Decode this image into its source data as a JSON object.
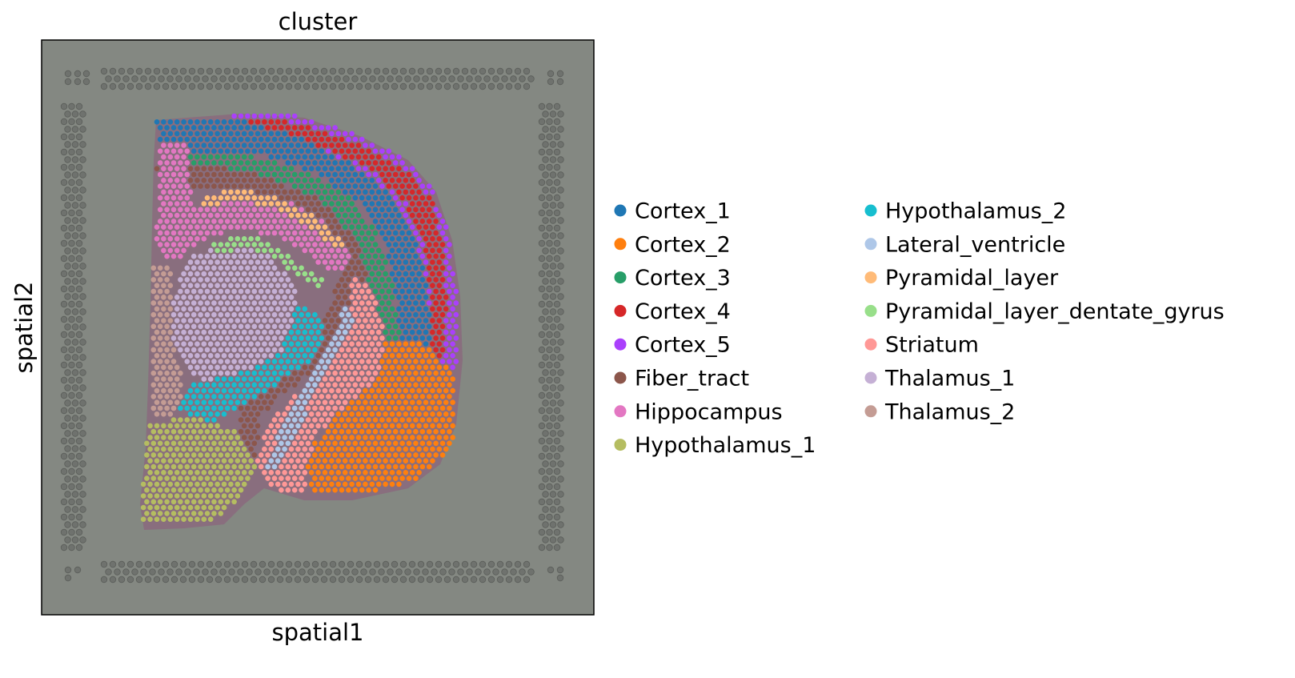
{
  "chart_data": {
    "type": "scatter",
    "title": "cluster",
    "xlabel": "spatial1",
    "ylabel": "spatial2",
    "grid": false,
    "ticks": false,
    "background": "tissue-image",
    "legend": {
      "placement": "right",
      "columns": 2,
      "entries": [
        {
          "name": "Cortex_1",
          "color": "#1f77b4"
        },
        {
          "name": "Cortex_2",
          "color": "#ff7f0e"
        },
        {
          "name": "Cortex_3",
          "color": "#279e68"
        },
        {
          "name": "Cortex_4",
          "color": "#d62728"
        },
        {
          "name": "Cortex_5",
          "color": "#aa40fc"
        },
        {
          "name": "Fiber_tract",
          "color": "#8c564b"
        },
        {
          "name": "Hippocampus",
          "color": "#e377c2"
        },
        {
          "name": "Hypothalamus_1",
          "color": "#b5bd61"
        },
        {
          "name": "Hypothalamus_2",
          "color": "#17becf"
        },
        {
          "name": "Lateral_ventricle",
          "color": "#aec7e8"
        },
        {
          "name": "Pyramidal_layer",
          "color": "#ffbb78"
        },
        {
          "name": "Pyramidal_layer_dentate_gyrus",
          "color": "#98df8a"
        },
        {
          "name": "Striatum",
          "color": "#ff9896"
        },
        {
          "name": "Thalamus_1",
          "color": "#c5b0d5"
        },
        {
          "name": "Thalamus_2",
          "color": "#c49c94"
        }
      ]
    },
    "regions": [
      {
        "cluster": "Cortex_5",
        "polygon": [
          [
            290,
            142
          ],
          [
            370,
            145
          ],
          [
            440,
            165
          ],
          [
            500,
            195
          ],
          [
            540,
            235
          ],
          [
            560,
            290
          ],
          [
            570,
            360
          ],
          [
            572,
            440
          ],
          [
            565,
            520
          ],
          [
            545,
            575
          ],
          [
            505,
            605
          ],
          [
            520,
            520
          ],
          [
            525,
            430
          ],
          [
            515,
            350
          ],
          [
            490,
            280
          ],
          [
            445,
            225
          ],
          [
            380,
            185
          ],
          [
            300,
            170
          ]
        ]
      },
      {
        "cluster": "Cortex_4",
        "polygon": [
          [
            300,
            145
          ],
          [
            380,
            155
          ],
          [
            450,
            180
          ],
          [
            505,
            210
          ],
          [
            540,
            250
          ],
          [
            555,
            310
          ],
          [
            558,
            390
          ],
          [
            552,
            450
          ],
          [
            540,
            450
          ],
          [
            540,
            390
          ],
          [
            530,
            310
          ],
          [
            505,
            250
          ],
          [
            460,
            210
          ],
          [
            390,
            180
          ],
          [
            300,
            170
          ]
        ]
      },
      {
        "cluster": "Cortex_1",
        "polygon": [
          [
            195,
            150
          ],
          [
            300,
            148
          ],
          [
            380,
            175
          ],
          [
            440,
            205
          ],
          [
            490,
            245
          ],
          [
            520,
            300
          ],
          [
            535,
            360
          ],
          [
            540,
            440
          ],
          [
            500,
            445
          ],
          [
            495,
            370
          ],
          [
            480,
            305
          ],
          [
            450,
            255
          ],
          [
            400,
            220
          ],
          [
            330,
            195
          ],
          [
            260,
            190
          ],
          [
            200,
            200
          ]
        ]
      },
      {
        "cluster": "Cortex_3",
        "polygon": [
          [
            225,
            195
          ],
          [
            300,
            190
          ],
          [
            370,
            210
          ],
          [
            430,
            240
          ],
          [
            470,
            290
          ],
          [
            490,
            350
          ],
          [
            500,
            420
          ],
          [
            510,
            470
          ],
          [
            470,
            460
          ],
          [
            465,
            390
          ],
          [
            450,
            320
          ],
          [
            420,
            270
          ],
          [
            370,
            235
          ],
          [
            300,
            215
          ],
          [
            235,
            225
          ]
        ]
      },
      {
        "cluster": "Cortex_2",
        "polygon": [
          [
            470,
            420
          ],
          [
            530,
            430
          ],
          [
            570,
            470
          ],
          [
            565,
            560
          ],
          [
            520,
            600
          ],
          [
            460,
            615
          ],
          [
            390,
            620
          ],
          [
            380,
            570
          ],
          [
            420,
            520
          ],
          [
            455,
            470
          ]
        ]
      },
      {
        "cluster": "Fiber_tract",
        "polygon": [
          [
            195,
            205
          ],
          [
            250,
            205
          ],
          [
            330,
            220
          ],
          [
            400,
            250
          ],
          [
            445,
            300
          ],
          [
            460,
            350
          ],
          [
            430,
            400
          ],
          [
            415,
            430
          ],
          [
            395,
            460
          ],
          [
            370,
            480
          ],
          [
            345,
            500
          ],
          [
            325,
            520
          ],
          [
            320,
            570
          ],
          [
            300,
            560
          ],
          [
            300,
            500
          ],
          [
            340,
            470
          ],
          [
            375,
            440
          ],
          [
            410,
            390
          ],
          [
            425,
            335
          ],
          [
            400,
            280
          ],
          [
            350,
            250
          ],
          [
            290,
            235
          ],
          [
            230,
            240
          ],
          [
            200,
            260
          ]
        ]
      },
      {
        "cluster": "Hippocampus",
        "polygon": [
          [
            200,
            180
          ],
          [
            235,
            180
          ],
          [
            240,
            260
          ],
          [
            300,
            235
          ],
          [
            360,
            250
          ],
          [
            410,
            280
          ],
          [
            440,
            320
          ],
          [
            430,
            345
          ],
          [
            400,
            330
          ],
          [
            360,
            300
          ],
          [
            300,
            285
          ],
          [
            255,
            300
          ],
          [
            215,
            330
          ],
          [
            195,
            300
          ]
        ]
      },
      {
        "cluster": "Striatum",
        "polygon": [
          [
            440,
            340
          ],
          [
            470,
            370
          ],
          [
            480,
            420
          ],
          [
            475,
            470
          ],
          [
            440,
            500
          ],
          [
            400,
            540
          ],
          [
            380,
            580
          ],
          [
            385,
            620
          ],
          [
            340,
            610
          ],
          [
            320,
            580
          ],
          [
            330,
            540
          ],
          [
            360,
            500
          ],
          [
            400,
            470
          ],
          [
            420,
            430
          ],
          [
            435,
            390
          ]
        ]
      },
      {
        "cluster": "Thalamus_1",
        "polygon": [
          [
            240,
            320
          ],
          [
            290,
            300
          ],
          [
            340,
            320
          ],
          [
            370,
            360
          ],
          [
            375,
            400
          ],
          [
            360,
            440
          ],
          [
            320,
            470
          ],
          [
            280,
            480
          ],
          [
            240,
            470
          ],
          [
            215,
            430
          ],
          [
            210,
            380
          ]
        ]
      },
      {
        "cluster": "Hypothalamus_2",
        "polygon": [
          [
            370,
            380
          ],
          [
            400,
            390
          ],
          [
            405,
            420
          ],
          [
            390,
            450
          ],
          [
            360,
            470
          ],
          [
            330,
            490
          ],
          [
            300,
            510
          ],
          [
            260,
            530
          ],
          [
            225,
            510
          ],
          [
            240,
            480
          ],
          [
            280,
            470
          ],
          [
            320,
            460
          ],
          [
            350,
            440
          ],
          [
            365,
            410
          ]
        ]
      },
      {
        "cluster": "Thalamus_2",
        "polygon": [
          [
            190,
            330
          ],
          [
            215,
            330
          ],
          [
            215,
            430
          ],
          [
            230,
            480
          ],
          [
            220,
            520
          ],
          [
            190,
            520
          ]
        ]
      },
      {
        "cluster": "Hypothalamus_1",
        "polygon": [
          [
            185,
            530
          ],
          [
            240,
            520
          ],
          [
            300,
            540
          ],
          [
            320,
            580
          ],
          [
            300,
            620
          ],
          [
            270,
            650
          ],
          [
            210,
            655
          ],
          [
            175,
            655
          ],
          [
            180,
            590
          ]
        ]
      },
      {
        "cluster": "Pyramidal_layer_dentate_gyrus",
        "polygon": [
          [
            265,
            305
          ],
          [
            300,
            292
          ],
          [
            330,
            300
          ],
          [
            360,
            320
          ],
          [
            390,
            340
          ],
          [
            410,
            350
          ],
          [
            395,
            360
          ],
          [
            370,
            345
          ],
          [
            340,
            320
          ],
          [
            305,
            308
          ],
          [
            275,
            318
          ]
        ]
      },
      {
        "cluster": "Pyramidal_layer",
        "polygon": [
          [
            250,
            245
          ],
          [
            300,
            236
          ],
          [
            355,
            250
          ],
          [
            400,
            275
          ],
          [
            430,
            305
          ],
          [
            420,
            312
          ],
          [
            390,
            285
          ],
          [
            350,
            262
          ],
          [
            300,
            250
          ],
          [
            255,
            260
          ]
        ]
      },
      {
        "cluster": "Lateral_ventricle",
        "polygon": [
          [
            430,
            380
          ],
          [
            445,
            395
          ],
          [
            420,
            440
          ],
          [
            400,
            480
          ],
          [
            380,
            520
          ],
          [
            360,
            560
          ],
          [
            345,
            590
          ],
          [
            330,
            585
          ],
          [
            345,
            550
          ],
          [
            365,
            510
          ],
          [
            390,
            470
          ],
          [
            415,
            425
          ]
        ]
      }
    ]
  }
}
